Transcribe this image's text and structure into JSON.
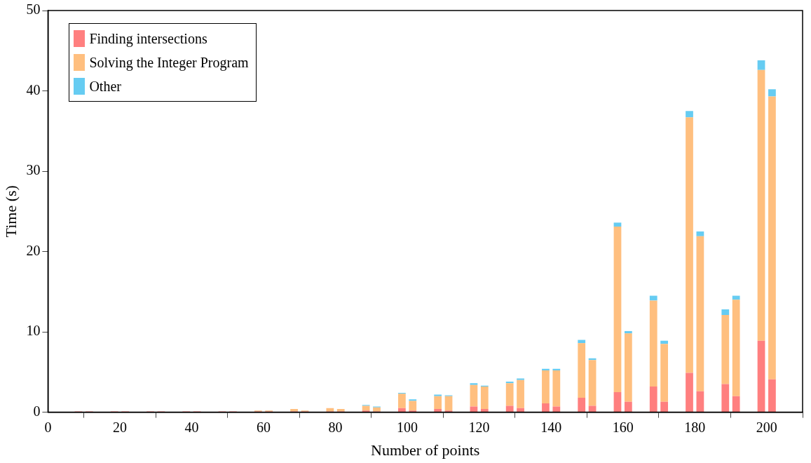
{
  "chart_data": {
    "type": "bar",
    "stacked": true,
    "xlabel": "Number of points",
    "ylabel": "Time (s)",
    "xlim": [
      0,
      210
    ],
    "xticks": [
      0,
      20,
      40,
      60,
      80,
      100,
      120,
      140,
      160,
      180,
      200
    ],
    "ylim": [
      0,
      50
    ],
    "yticks": [
      0,
      10,
      20,
      30,
      40,
      50
    ],
    "grid": false,
    "legend": "top left",
    "x": [
      8.5,
      11.5,
      18.5,
      21.5,
      28.5,
      31.5,
      38.5,
      41.5,
      48.5,
      51.5,
      58.5,
      61.5,
      68.5,
      71.5,
      78.5,
      81.5,
      88.5,
      91.5,
      98.5,
      101.5,
      108.5,
      111.5,
      118.5,
      121.5,
      128.5,
      131.5,
      138.5,
      141.5,
      148.5,
      151.5,
      158.5,
      161.5,
      168.5,
      171.5,
      178.5,
      181.5,
      188.5,
      191.5,
      198.5,
      201.5
    ],
    "series": [
      {
        "name": "Finding intersections",
        "color": "#ff7f7f",
        "values": [
          0.1,
          0.1,
          0.1,
          0.1,
          0.1,
          0.1,
          0.1,
          0.1,
          0.1,
          0.1,
          0.1,
          0.1,
          0.1,
          0.1,
          0.1,
          0.1,
          0.2,
          0.1,
          0.5,
          0.2,
          0.4,
          0.2,
          0.7,
          0.4,
          0.8,
          0.5,
          1.1,
          0.7,
          1.8,
          0.8,
          2.5,
          1.3,
          3.2,
          1.3,
          4.9,
          2.6,
          3.5,
          2.0,
          8.9,
          4.1
        ]
      },
      {
        "name": "Solving the Integer Program",
        "color": "#ffbf7f",
        "values": [
          null,
          null,
          null,
          null,
          null,
          null,
          null,
          null,
          null,
          null,
          0.1,
          0.1,
          0.3,
          0.1,
          0.4,
          0.3,
          0.6,
          0.5,
          1.8,
          1.2,
          1.6,
          1.8,
          2.7,
          2.8,
          2.8,
          3.5,
          4.1,
          4.5,
          6.8,
          5.7,
          20.6,
          8.5,
          10.7,
          7.2,
          31.8,
          19.3,
          8.6,
          12.0,
          33.7,
          35.2
        ]
      },
      {
        "name": "Other",
        "color": "#66ccf2",
        "values": [
          null,
          null,
          null,
          null,
          null,
          null,
          null,
          null,
          null,
          null,
          null,
          null,
          null,
          null,
          null,
          null,
          0.1,
          0.1,
          0.1,
          0.2,
          0.2,
          0.1,
          0.2,
          0.1,
          0.2,
          0.2,
          0.2,
          0.2,
          0.4,
          0.2,
          0.5,
          0.3,
          0.6,
          0.4,
          0.8,
          0.6,
          0.7,
          0.5,
          1.2,
          0.9
        ]
      }
    ]
  }
}
